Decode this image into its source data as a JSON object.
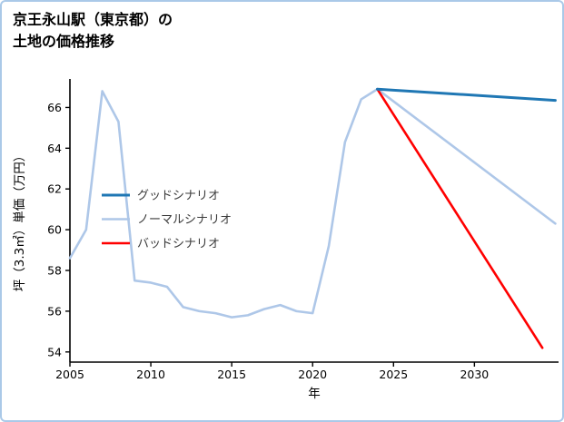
{
  "title": {
    "line1": "京王永山駅（東京都）の",
    "line2": "土地の価格推移"
  },
  "colors": {
    "good": "#1f77b4",
    "normal": "#aec7e8",
    "bad": "#ff0000",
    "axis": "#000000",
    "legend_text": "#3a3a3a",
    "border": "#aac9e8"
  },
  "chart_data": {
    "type": "line",
    "title": "京王永山駅（東京都）の土地の価格推移",
    "xlabel": "年",
    "ylabel": "坪（3.3㎡）単価（万円）",
    "xlim": [
      2005,
      2035.2
    ],
    "ylim": [
      53.5,
      67.4
    ],
    "xticks": [
      2005,
      2010,
      2015,
      2020,
      2025,
      2030
    ],
    "yticks": [
      54,
      56,
      58,
      60,
      62,
      64,
      66
    ],
    "grid": false,
    "legend_position": "center-left",
    "series": [
      {
        "name": "グッドシナリオ",
        "color": "#1f77b4",
        "width": 3,
        "zorder": 3,
        "x": [
          2024,
          2035.0
        ],
        "y": [
          66.9,
          66.35
        ]
      },
      {
        "name": "ノーマルシナリオ",
        "color": "#aec7e8",
        "width": 2.6,
        "zorder": 1,
        "x": [
          2005,
          2006,
          2007,
          2008,
          2009,
          2010,
          2011,
          2012,
          2013,
          2014,
          2015,
          2016,
          2017,
          2018,
          2019,
          2020,
          2021,
          2022,
          2023,
          2024,
          2035.0
        ],
        "y": [
          58.6,
          60.0,
          66.8,
          65.3,
          57.5,
          57.4,
          57.2,
          56.2,
          56.0,
          55.9,
          55.7,
          55.8,
          56.1,
          56.3,
          56.0,
          55.9,
          59.2,
          64.3,
          66.4,
          66.9,
          60.3
        ]
      },
      {
        "name": "バッドシナリオ",
        "color": "#ff0000",
        "width": 2.6,
        "zorder": 2,
        "x": [
          2024,
          2034.2
        ],
        "y": [
          66.9,
          54.2
        ]
      }
    ]
  }
}
